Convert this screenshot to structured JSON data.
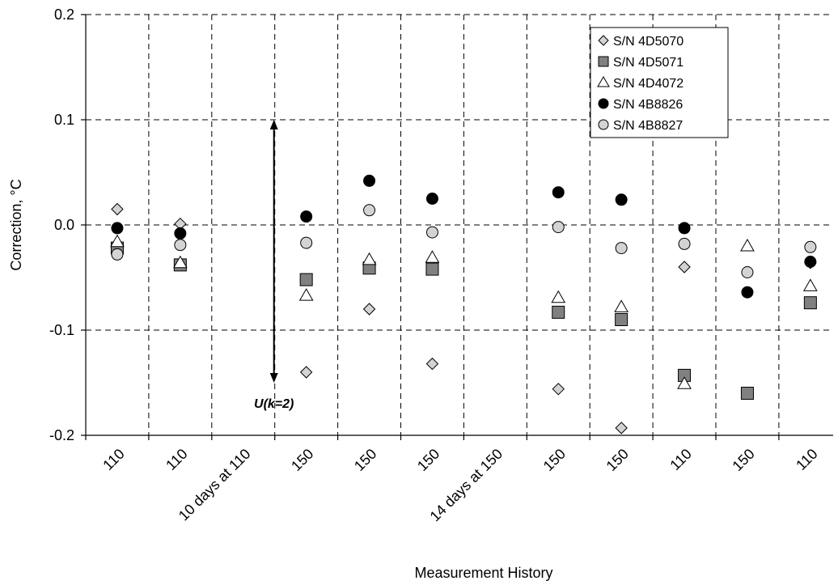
{
  "chart_data": {
    "type": "scatter",
    "xlabel": "Measurement History",
    "ylabel": "Correction, °C",
    "ylim": [
      -0.2,
      0.2
    ],
    "yticks": [
      "0.2",
      "0.1",
      "0.0",
      "-0.1",
      "-0.2"
    ],
    "ytick_values": [
      0.2,
      0.1,
      0.0,
      -0.1,
      -0.2
    ],
    "categories": [
      "110",
      "110",
      "10 days at 110",
      "150",
      "150",
      "150",
      "14 days at 150",
      "150",
      "150",
      "110",
      "150",
      "110"
    ],
    "grid": true,
    "legend_position": "top-right",
    "series": [
      {
        "name": "S/N 4D5070",
        "marker": "diamond",
        "color": "#d3d3d3",
        "values": [
          0.015,
          0.001,
          null,
          -0.14,
          -0.08,
          -0.132,
          null,
          -0.156,
          -0.193,
          -0.04,
          null,
          -0.036
        ]
      },
      {
        "name": "S/N 4D5071",
        "marker": "square",
        "color": "#808080",
        "values": [
          -0.022,
          -0.038,
          null,
          -0.052,
          -0.041,
          -0.042,
          null,
          -0.083,
          -0.09,
          -0.143,
          -0.16,
          -0.074
        ]
      },
      {
        "name": "S/N 4D4072",
        "marker": "triangle",
        "color": "#ffffff",
        "values": [
          -0.016,
          -0.036,
          null,
          -0.067,
          -0.033,
          -0.031,
          null,
          -0.069,
          -0.078,
          -0.151,
          -0.02,
          -0.058
        ]
      },
      {
        "name": "S/N 4B8826",
        "marker": "circle",
        "color": "#000000",
        "values": [
          -0.003,
          -0.008,
          null,
          0.008,
          0.042,
          0.025,
          null,
          0.031,
          0.024,
          -0.003,
          -0.064,
          -0.035
        ]
      },
      {
        "name": "S/N 4B8827",
        "marker": "circle",
        "color": "#d3d3d3",
        "values": [
          -0.028,
          -0.019,
          null,
          -0.017,
          0.014,
          -0.007,
          null,
          -0.002,
          -0.022,
          -0.018,
          -0.045,
          -0.021
        ]
      }
    ],
    "annotations": [
      {
        "text": "U(k=2)",
        "category_index": 2,
        "arrow_from": 0.1,
        "arrow_to": -0.15
      }
    ]
  }
}
